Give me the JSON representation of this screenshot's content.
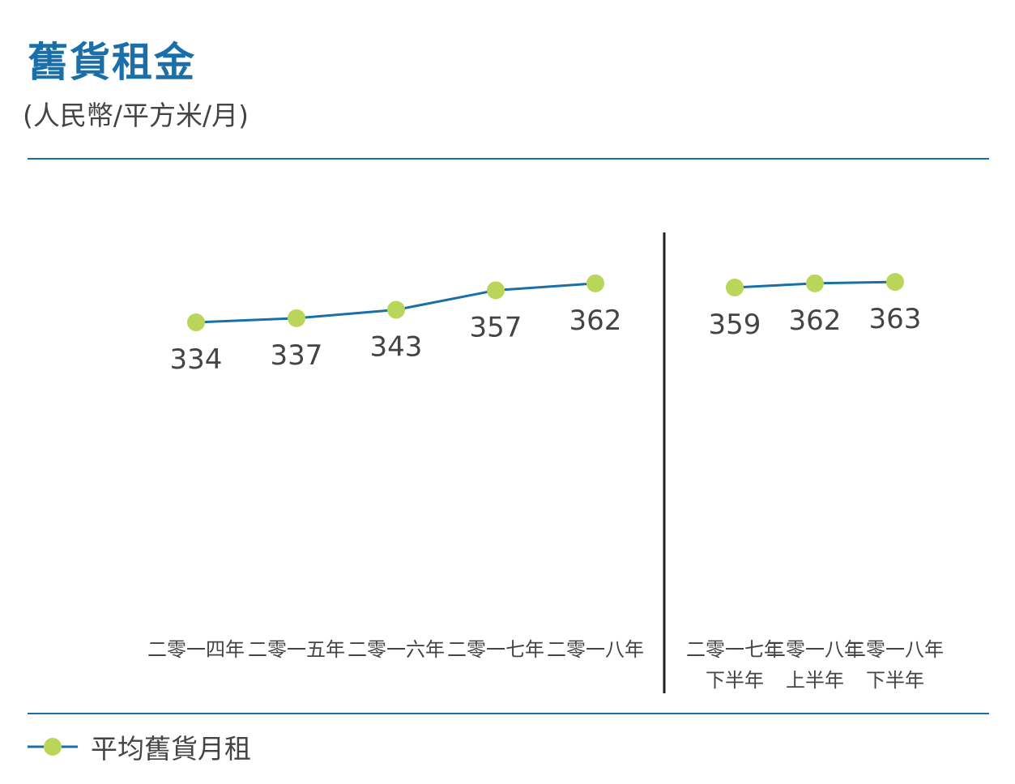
{
  "header": {
    "title": "舊貨租金",
    "subtitle": "(人民幣/平方米/月)"
  },
  "colors": {
    "title": "#1a6fa8",
    "rule": "#1a6fa8",
    "line": "#1a6fa8",
    "marker": "#b9d65a",
    "text": "#444444",
    "divider": "#222222"
  },
  "legend": {
    "label": "平均舊貨月租",
    "icon": "line-with-dot-marker"
  },
  "chart_data": [
    {
      "type": "line",
      "title": "",
      "xlabel": "",
      "ylabel": "",
      "categories": [
        "二零一四年",
        "二零一五年",
        "二零一六年",
        "二零一七年",
        "二零一八年"
      ],
      "series": [
        {
          "name": "平均舊貨月租",
          "values": [
            334,
            337,
            343,
            357,
            362
          ]
        }
      ],
      "data_labels": [
        "334",
        "337",
        "343",
        "357",
        "362"
      ]
    },
    {
      "type": "line",
      "title": "",
      "xlabel": "",
      "ylabel": "",
      "categories": [
        [
          "二零一七年",
          "下半年"
        ],
        [
          "二零一八年",
          "上半年"
        ],
        [
          "二零一八年",
          "下半年"
        ]
      ],
      "series": [
        {
          "name": "平均舊貨月租",
          "values": [
            359,
            362,
            363
          ]
        }
      ],
      "data_labels": [
        "359",
        "362",
        "363"
      ]
    }
  ]
}
